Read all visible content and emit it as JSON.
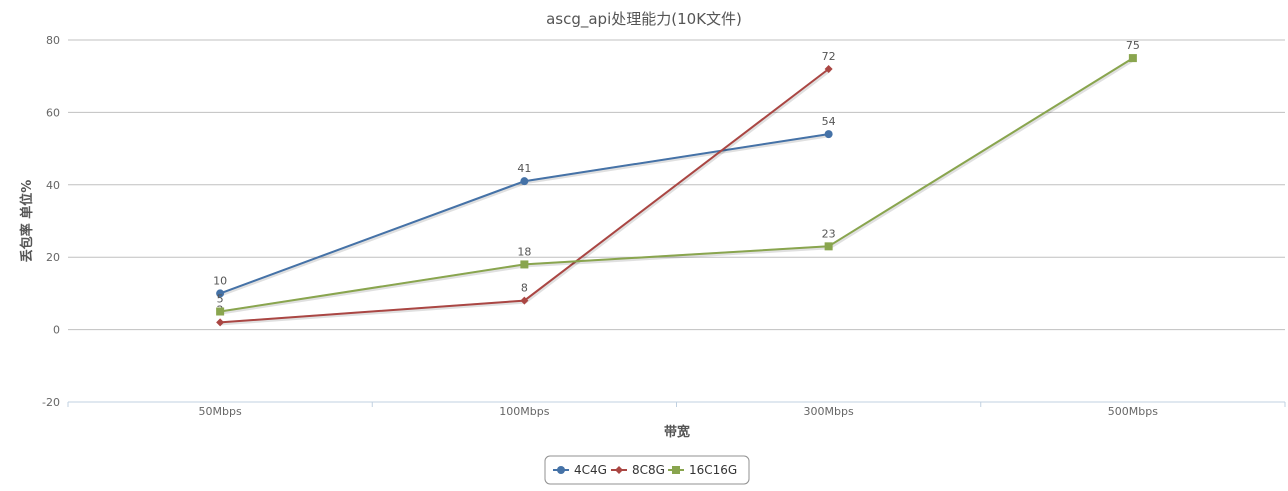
{
  "chart_data": {
    "type": "line",
    "title": "ascg_api处理能力(10K文件)",
    "xlabel": "带宽",
    "ylabel": "丢包率 单位%",
    "categories": [
      "50Mbps",
      "100Mbps",
      "300Mbps",
      "500Mbps"
    ],
    "ylim": [
      -20,
      80
    ],
    "yticks": [
      -20,
      0,
      20,
      40,
      60,
      80
    ],
    "grid": true,
    "legend_position": "bottom-center",
    "series": [
      {
        "name": "4C4G",
        "values": [
          10,
          41,
          54,
          null
        ],
        "color": "#4572A7",
        "marker": "circle"
      },
      {
        "name": "8C8G",
        "values": [
          2,
          8,
          72,
          null
        ],
        "color": "#AA4643",
        "marker": "diamond"
      },
      {
        "name": "16C16G",
        "values": [
          5,
          18,
          23,
          75
        ],
        "color": "#89A54E",
        "marker": "square"
      }
    ],
    "data_labels": true
  }
}
